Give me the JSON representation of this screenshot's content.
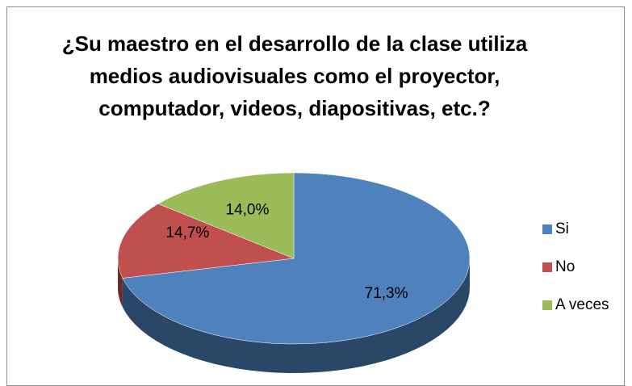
{
  "chart_data": {
    "type": "pie",
    "title": "¿Su maestro en el desarrollo de la clase utiliza medios audiovisuales como el proyector, computador, videos, diapositivas, etc.?",
    "categories": [
      "Si",
      "No",
      "A veces"
    ],
    "values": [
      71.3,
      14.7,
      14.0
    ],
    "value_labels": [
      "71,3%",
      "14,7%",
      "14,0%"
    ],
    "colors": [
      "#4f81bd",
      "#c0504d",
      "#9bbb59"
    ],
    "legend": "right"
  }
}
